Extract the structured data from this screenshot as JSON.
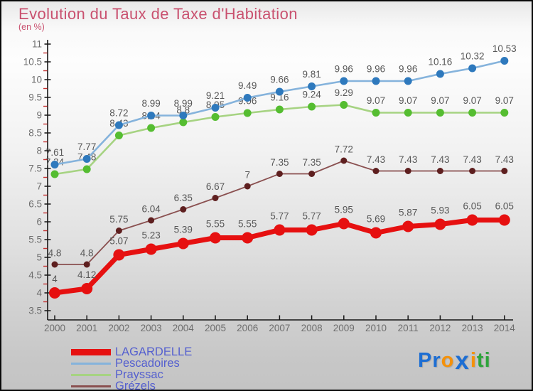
{
  "header": {
    "title": "Evolution du Taux de Taxe d'Habitation",
    "subtitle": "(en %)"
  },
  "theme": {
    "title_color": "#c9516f",
    "legend_text_color": "#5560cf",
    "axis_color": "#161616",
    "minor_tick_color": "#c43131",
    "axis_label_color": "#6e6e6e",
    "value_label_color": "#585858",
    "background_top": "#f9f9f9",
    "background_bottom": "#c4c4c4"
  },
  "chart_data": {
    "type": "line",
    "title": "Evolution du Taux de Taxe d'Habitation",
    "subtitle": "(en %)",
    "unit": "%",
    "categories": [
      "2000",
      "2001",
      "2002",
      "2003",
      "2004",
      "2005",
      "2006",
      "2007",
      "2008",
      "2009",
      "2010",
      "2011",
      "2012",
      "2013",
      "2014"
    ],
    "ylim": [
      3.5,
      11
    ],
    "ytick_step": 0.5,
    "yminor_step": 0.25,
    "grid": false,
    "legend_position": "bottom-left",
    "point_labels_visible": true,
    "series": [
      {
        "name": "LAGARDELLE",
        "line_color": "#e61010",
        "point_color": "#e61010",
        "line_width": 7,
        "point_radius": 8,
        "values": [
          4,
          4.12,
          5.07,
          5.23,
          5.39,
          5.55,
          5.55,
          5.77,
          5.77,
          5.95,
          5.69,
          5.87,
          5.93,
          6.05,
          6.05
        ]
      },
      {
        "name": "Pescadoires",
        "line_color": "#85b3dc",
        "point_color": "#2e79bd",
        "line_width": 2.6,
        "point_radius": 5.5,
        "values": [
          7.61,
          7.77,
          8.72,
          8.99,
          8.99,
          9.21,
          9.49,
          9.66,
          9.81,
          9.96,
          9.96,
          9.96,
          10.16,
          10.32,
          10.53
        ]
      },
      {
        "name": "Prayssac",
        "line_color": "#a6d382",
        "point_color": "#55bd31",
        "line_width": 2.6,
        "point_radius": 5.5,
        "values": [
          7.34,
          7.48,
          8.43,
          8.64,
          8.8,
          8.95,
          9.06,
          9.16,
          9.24,
          9.29,
          9.07,
          9.07,
          9.07,
          9.07,
          9.07
        ]
      },
      {
        "name": "Grézels",
        "line_color": "#8a5050",
        "point_color": "#5e1f1f",
        "line_width": 1.8,
        "point_radius": 4.5,
        "values": [
          4.8,
          4.8,
          5.75,
          6.04,
          6.35,
          6.67,
          7,
          7.35,
          7.35,
          7.72,
          7.43,
          7.43,
          7.43,
          7.43,
          7.43
        ]
      }
    ]
  },
  "logo": {
    "text": "Proxiti",
    "letters": [
      {
        "ch": "P",
        "color": "#1d6ed3"
      },
      {
        "ch": "r",
        "color": "#1d6ed3"
      },
      {
        "ch": "o",
        "color": "#f59109"
      },
      {
        "ch": "x",
        "color": "#1d6ed3"
      },
      {
        "ch": "i",
        "color": "#f59109"
      },
      {
        "ch": "t",
        "color": "#2ea43b"
      },
      {
        "ch": "i",
        "color": "#2ea43b"
      }
    ]
  }
}
